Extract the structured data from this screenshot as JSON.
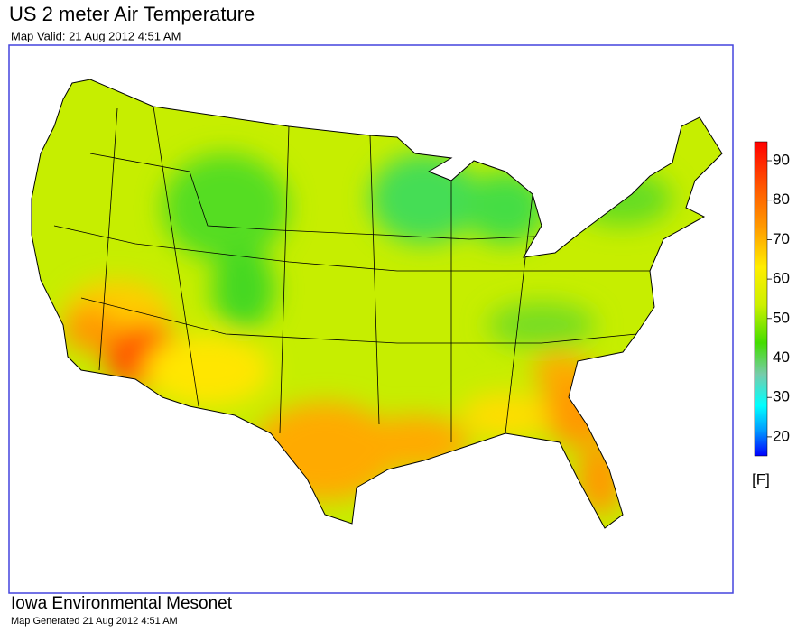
{
  "header": {
    "title": "US 2 meter Air Temperature",
    "subtitle": "Map Valid: 21 Aug 2012 4:51 AM"
  },
  "legend": {
    "ticks": [
      "90",
      "80",
      "70",
      "60",
      "50",
      "40",
      "30",
      "20"
    ],
    "unit": "[F]"
  },
  "footer": {
    "org": "Iowa Environmental Mesonet",
    "generated": "Map Generated 21 Aug 2012 4:51 AM"
  }
}
